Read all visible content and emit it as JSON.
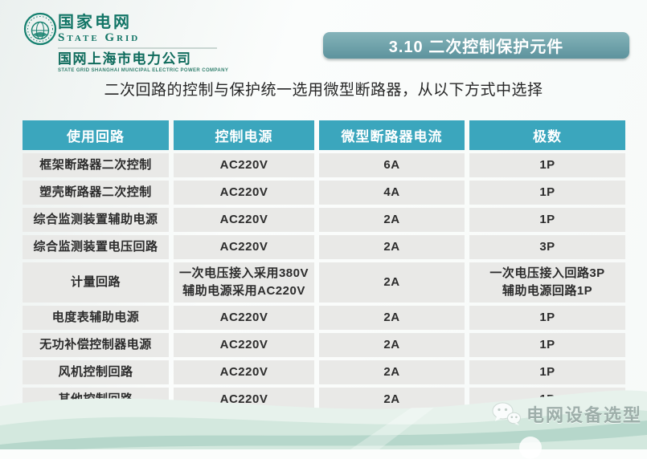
{
  "logo": {
    "brand_cn": "国家电网",
    "brand_en": "State Grid",
    "company_cn": "国网上海市电力公司",
    "company_en": "STATE GRID SHANGHAI MUNICIPAL ELECTRIC POWER COMPANY",
    "brand_color": "#127566",
    "emblem_icon": "state-grid-globe-icon"
  },
  "banner": {
    "label": "3.10 二次控制保护元件",
    "bg_color": "#6aa0a8"
  },
  "subtitle": "二次回路的控制与保护统一选用微型断路器，从以下方式中选择",
  "table": {
    "header_bg": "#3ba6bd",
    "row_bg": "#e9e9e7",
    "columns": [
      "使用回路",
      "控制电源",
      "微型断路器电流",
      "极数"
    ],
    "rows": [
      {
        "cells": [
          [
            "框架断路器二次控制"
          ],
          [
            "AC220V"
          ],
          [
            "6A"
          ],
          [
            "1P"
          ]
        ]
      },
      {
        "cells": [
          [
            "塑壳断路器二次控制"
          ],
          [
            "AC220V"
          ],
          [
            "4A"
          ],
          [
            "1P"
          ]
        ]
      },
      {
        "cells": [
          [
            "综合监测装置辅助电源"
          ],
          [
            "AC220V"
          ],
          [
            "2A"
          ],
          [
            "1P"
          ]
        ]
      },
      {
        "cells": [
          [
            "综合监测装置电压回路"
          ],
          [
            "AC220V"
          ],
          [
            "2A"
          ],
          [
            "3P"
          ]
        ]
      },
      {
        "cells": [
          [
            "计量回路"
          ],
          [
            "一次电压接入采用380V",
            "辅助电源采用AC220V"
          ],
          [
            "2A"
          ],
          [
            "一次电压接入回路3P",
            "辅助电源回路1P"
          ]
        ]
      },
      {
        "cells": [
          [
            "电度表辅助电源"
          ],
          [
            "AC220V"
          ],
          [
            "2A"
          ],
          [
            "1P"
          ]
        ]
      },
      {
        "cells": [
          [
            "无功补偿控制器电源"
          ],
          [
            "AC220V"
          ],
          [
            "2A"
          ],
          [
            "1P"
          ]
        ]
      },
      {
        "cells": [
          [
            "风机控制回路"
          ],
          [
            "AC220V"
          ],
          [
            "2A"
          ],
          [
            "1P"
          ]
        ]
      },
      {
        "cells": [
          [
            "其他控制回路"
          ],
          [
            "AC220V"
          ],
          [
            "2A"
          ],
          [
            "1P"
          ]
        ]
      }
    ]
  },
  "watermark": {
    "icon": "wechat-icon",
    "label": "电网设备选型",
    "text_color": "#98a8a4"
  }
}
